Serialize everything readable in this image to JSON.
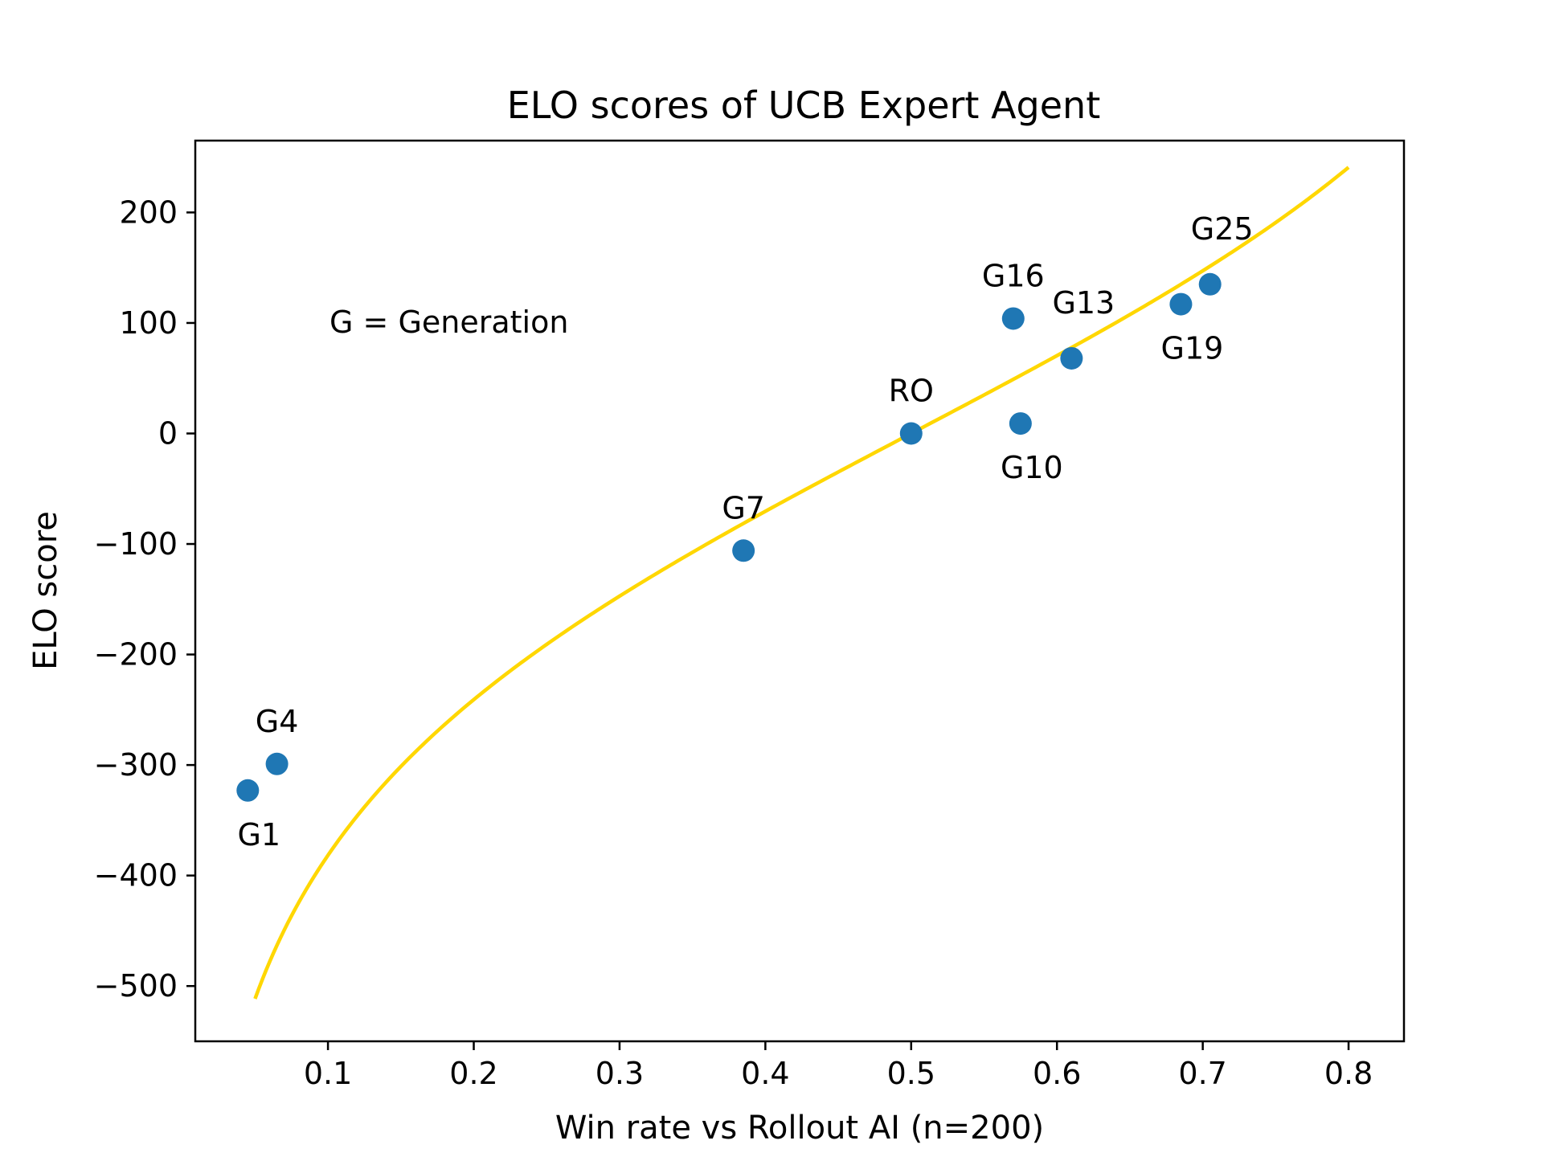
{
  "chart_data": {
    "type": "scatter",
    "title": "ELO scores of UCB Expert Agent",
    "xlabel": "Win rate vs Rollout AI (n=200)",
    "ylabel": "ELO score",
    "xlim": [
      0.009,
      0.838
    ],
    "ylim": [
      -550,
      265
    ],
    "xticks": [
      0.1,
      0.2,
      0.3,
      0.4,
      0.5,
      0.6,
      0.7,
      0.8
    ],
    "xtick_labels": [
      "0.1",
      "0.2",
      "0.3",
      "0.4",
      "0.5",
      "0.6",
      "0.7",
      "0.8"
    ],
    "yticks": [
      200,
      100,
      0,
      -100,
      -200,
      -300,
      -400,
      -500
    ],
    "ytick_labels": [
      "200",
      "100",
      "0",
      "−100",
      "−200",
      "−300",
      "−400",
      "−500"
    ],
    "grid": false,
    "annotation": "G = Generation",
    "points": [
      {
        "label": "G1",
        "x": 0.045,
        "y": -323,
        "label_pos": "below"
      },
      {
        "label": "G4",
        "x": 0.065,
        "y": -299,
        "label_pos": "above"
      },
      {
        "label": "G7",
        "x": 0.385,
        "y": -106,
        "label_pos": "above"
      },
      {
        "label": "RO",
        "x": 0.5,
        "y": 0,
        "label_pos": "above"
      },
      {
        "label": "G10",
        "x": 0.575,
        "y": 9,
        "label_pos": "below"
      },
      {
        "label": "G16",
        "x": 0.57,
        "y": 104,
        "label_pos": "above"
      },
      {
        "label": "G13",
        "x": 0.61,
        "y": 68,
        "label_pos": "above-right"
      },
      {
        "label": "G19",
        "x": 0.685,
        "y": 117,
        "label_pos": "below"
      },
      {
        "label": "G25",
        "x": 0.705,
        "y": 135,
        "label_pos": "above-right"
      }
    ],
    "curve": {
      "x_range": [
        0.05,
        0.8
      ],
      "formula": "400*log10(x/(1-x))"
    },
    "colors": {
      "points": "#1f77b4",
      "curve": "#ffd700",
      "axes": "#000000"
    }
  }
}
